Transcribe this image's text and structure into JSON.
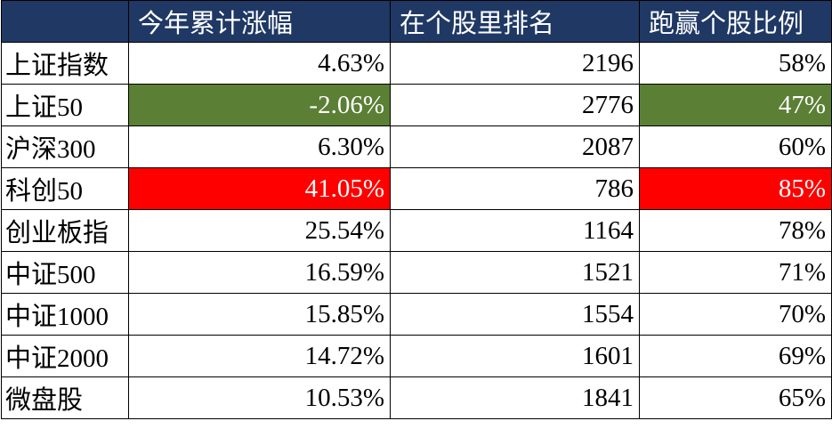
{
  "table": {
    "header": [
      "今年累计涨幅",
      "在个股里排名",
      "跑赢个股比例"
    ],
    "header_color": "#1f3864",
    "highlight_columns": [
      0,
      2
    ],
    "rows": [
      {
        "label": "上证指数",
        "cells": [
          "4.63%",
          "2196",
          "58%"
        ]
      },
      {
        "label": "上证50",
        "cells": [
          "-2.06%",
          "2776",
          "47%"
        ],
        "highlight": "#5b7f35"
      },
      {
        "label": "沪深300",
        "cells": [
          "6.30%",
          "2087",
          "60%"
        ]
      },
      {
        "label": "科创50",
        "cells": [
          "41.05%",
          "786",
          "85%"
        ],
        "highlight": "#ff0000"
      },
      {
        "label": "创业板指",
        "cells": [
          "25.54%",
          "1164",
          "78%"
        ]
      },
      {
        "label": "中证500",
        "cells": [
          "16.59%",
          "1521",
          "71%"
        ]
      },
      {
        "label": "中证1000",
        "cells": [
          "15.85%",
          "1554",
          "70%"
        ]
      },
      {
        "label": "中证2000",
        "cells": [
          "14.72%",
          "1601",
          "69%"
        ]
      },
      {
        "label": "微盘股",
        "cells": [
          "10.53%",
          "1841",
          "65%"
        ]
      }
    ]
  }
}
